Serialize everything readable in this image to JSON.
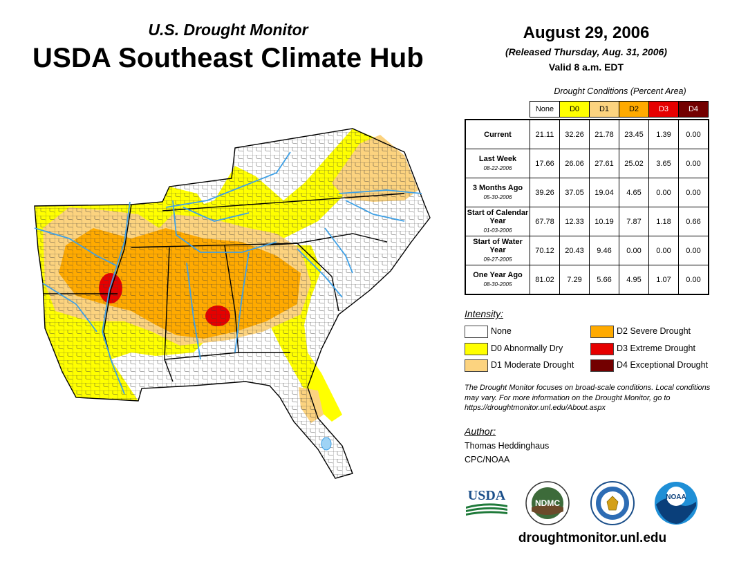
{
  "header": {
    "subtitle": "U.S. Drought Monitor",
    "title": "USDA Southeast Climate Hub",
    "date": "August 29, 2006",
    "released": "(Released Thursday, Aug. 31, 2006)",
    "valid": "Valid 8 a.m. EDT"
  },
  "table": {
    "caption": "Drought Conditions (Percent Area)",
    "columns": [
      "None",
      "D0",
      "D1",
      "D2",
      "D3",
      "D4"
    ],
    "column_colors": [
      "#ffffff",
      "#ffff00",
      "#fcd37f",
      "#ffaa00",
      "#e60000",
      "#730000"
    ],
    "rows": [
      {
        "label": "Current",
        "date": "",
        "values": [
          "21.11",
          "32.26",
          "21.78",
          "23.45",
          "1.39",
          "0.00"
        ]
      },
      {
        "label": "Last Week",
        "date": "08-22-2006",
        "values": [
          "17.66",
          "26.06",
          "27.61",
          "25.02",
          "3.65",
          "0.00"
        ]
      },
      {
        "label": "3 Months Ago",
        "date": "05-30-2006",
        "values": [
          "39.26",
          "37.05",
          "19.04",
          "4.65",
          "0.00",
          "0.00"
        ]
      },
      {
        "label": "Start of Calendar Year",
        "date": "01-03-2006",
        "values": [
          "67.78",
          "12.33",
          "10.19",
          "7.87",
          "1.18",
          "0.66"
        ]
      },
      {
        "label": "Start of Water Year",
        "date": "09-27-2005",
        "values": [
          "70.12",
          "20.43",
          "9.46",
          "0.00",
          "0.00",
          "0.00"
        ]
      },
      {
        "label": "One Year Ago",
        "date": "08-30-2005",
        "values": [
          "81.02",
          "7.29",
          "5.66",
          "4.95",
          "1.07",
          "0.00"
        ]
      }
    ]
  },
  "legend": {
    "title": "Intensity:",
    "items": [
      {
        "label": "None",
        "color": "#ffffff"
      },
      {
        "label": "D0 Abnormally Dry",
        "color": "#ffff00"
      },
      {
        "label": "D1 Moderate Drought",
        "color": "#fcd37f"
      },
      {
        "label": "D2 Severe Drought",
        "color": "#ffaa00"
      },
      {
        "label": "D3 Extreme Drought",
        "color": "#e60000"
      },
      {
        "label": "D4 Exceptional Drought",
        "color": "#730000"
      }
    ]
  },
  "note": "The Drought Monitor focuses on broad-scale conditions. Local conditions may vary. For more information on the Drought Monitor, go to https://droughtmonitor.unl.edu/About.aspx",
  "author": {
    "title": "Author:",
    "name": "Thomas Heddinghaus",
    "org": "CPC/NOAA"
  },
  "logos": {
    "usda": "USDA",
    "ndmc": "NDMC",
    "noaa": "NOAA"
  },
  "website": "droughtmonitor.unl.edu",
  "colors": {
    "river": "#3ea0e6",
    "county_line": "#3a3a3a",
    "state_line": "#000000"
  }
}
